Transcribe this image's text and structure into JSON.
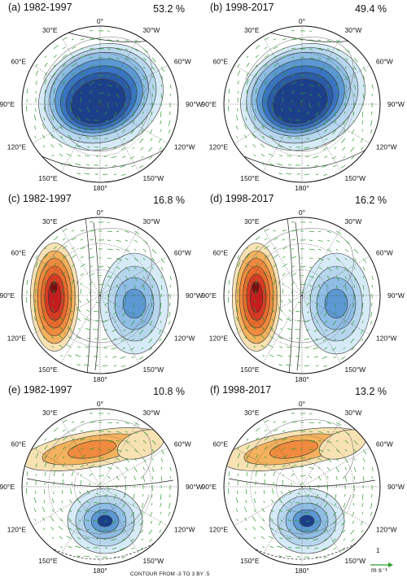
{
  "panels": [
    {
      "label": "(a) 1982-1997",
      "pct": "53.2 %",
      "pattern": "ao_low"
    },
    {
      "label": "(b) 1998-2017",
      "pct": "49.4 %",
      "pattern": "ao_low"
    },
    {
      "label": "(c) 1982-1997",
      "pct": "16.8 %",
      "pattern": "dipole"
    },
    {
      "label": "(d) 1998-2017",
      "pct": "16.2 %",
      "pattern": "dipole"
    },
    {
      "label": "(e) 1982-1997",
      "pct": "10.8 %",
      "pattern": "wave"
    },
    {
      "label": "(f) 1998-2017",
      "pct": "13.2 %",
      "pattern": "wave"
    }
  ],
  "lon_labels": {
    "top": "0°",
    "upper_left": "30°E",
    "upper_right": "30°W",
    "left_high": "60°E",
    "right_high": "60°W",
    "left_mid": "90°E",
    "right_mid": "90°W",
    "left_low": "120°E",
    "right_low": "120°W",
    "lower_left": "150°E",
    "lower_right": "150°W",
    "bottom": "180°"
  },
  "footer": {
    "contour_note": "CONTOUR FROM -3 TO 3 BY .5",
    "ref_vector_value": "1",
    "ref_vector_unit": "m s⁻¹"
  },
  "colors": {
    "negative_dark": "#1c3f8c",
    "negative_mid": "#3a74c4",
    "negative_light": "#8fbde6",
    "negative_pale": "#d6ebf7",
    "positive_pale": "#f8e2b4",
    "positive_light": "#f4b25e",
    "positive_mid": "#ea6a2c",
    "positive_dark": "#c61c1e",
    "vectors": "#2ca02c"
  }
}
